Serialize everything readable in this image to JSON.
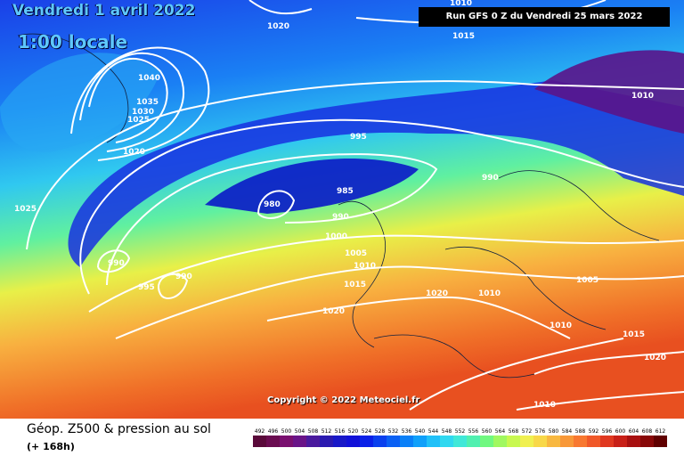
{
  "header": {
    "valid_date": "Vendredi 1 avril 2022",
    "local_time": "1:00 locale",
    "run_info": "Run GFS 0 Z du Vendredi 25 mars 2022"
  },
  "copyright": "Copyright © 2022 Meteociel.fr",
  "footer": {
    "title": "Géop. Z500 & pression au sol",
    "lead_time": "(+ 168h)"
  },
  "isobar_labels": [
    "1010",
    "1020",
    "1015",
    "1040",
    "1035",
    "1030",
    "1025",
    "1020",
    "995",
    "985",
    "980",
    "990",
    "990",
    "1000",
    "1025",
    "995",
    "990",
    "1005",
    "1010",
    "1015",
    "990",
    "1020",
    "1020",
    "1010",
    "1005",
    "1010",
    "1015",
    "1020",
    "1010",
    "1010"
  ],
  "legend": {
    "values": [
      "492",
      "496",
      "500",
      "504",
      "508",
      "512",
      "516",
      "520",
      "524",
      "528",
      "532",
      "536",
      "540",
      "544",
      "548",
      "552",
      "556",
      "560",
      "564",
      "568",
      "572",
      "576",
      "580",
      "584",
      "588",
      "592",
      "596",
      "600",
      "604",
      "608",
      "612"
    ],
    "colors": [
      "#5a0a3a",
      "#6a0c50",
      "#7a1070",
      "#6a1488",
      "#4a1a9e",
      "#2a1ab0",
      "#1818c8",
      "#1010d8",
      "#0a20e8",
      "#0a40ee",
      "#0a60f4",
      "#0a80f8",
      "#10a0fa",
      "#20c0f8",
      "#30d8f0",
      "#40e8d8",
      "#50f0b0",
      "#70f880",
      "#a0f860",
      "#c8f850",
      "#f0f050",
      "#f8d848",
      "#f8b840",
      "#f89838",
      "#f87830",
      "#f05828",
      "#e03820",
      "#c82018",
      "#a81010",
      "#880808",
      "#600000"
    ]
  }
}
